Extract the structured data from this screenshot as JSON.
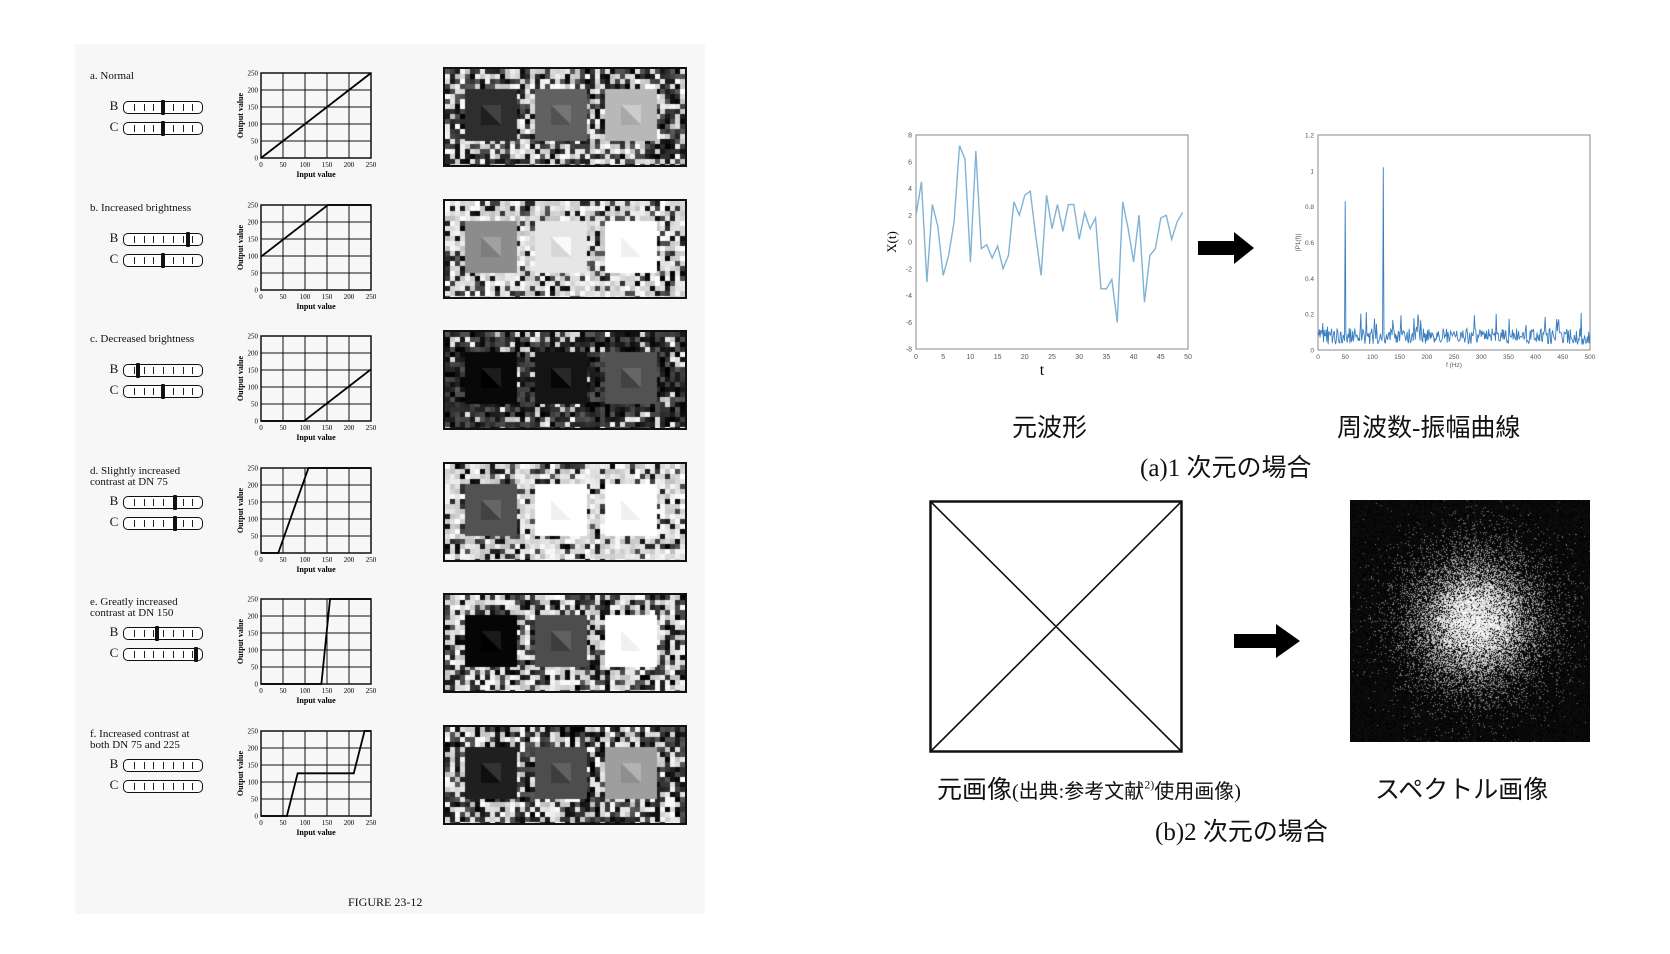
{
  "left_figure": {
    "caption": "FIGURE 23-12",
    "slider_labels": {
      "b": "B",
      "c": "C"
    },
    "axis": {
      "xlabel": "Input value",
      "ylabel": "Output value",
      "ticks": [
        "0",
        "50",
        "100",
        "150",
        "200",
        "250"
      ]
    },
    "rows": [
      {
        "label": "a. Normal",
        "b_pos": 0.5,
        "c_pos": 0.5,
        "curve": [
          [
            0,
            0
          ],
          [
            255,
            255
          ]
        ],
        "grays": [
          0.18,
          0.38,
          0.72
        ],
        "noise_mean": 0.45
      },
      {
        "label": "b. Increased brightness",
        "b_pos": 0.82,
        "c_pos": 0.5,
        "curve": [
          [
            0,
            100
          ],
          [
            155,
            255
          ],
          [
            255,
            255
          ]
        ],
        "grays": [
          0.55,
          0.9,
          1.0
        ],
        "noise_mean": 0.72
      },
      {
        "label": "c. Decreased brightness",
        "b_pos": 0.18,
        "c_pos": 0.5,
        "curve": [
          [
            0,
            0
          ],
          [
            100,
            0
          ],
          [
            255,
            155
          ]
        ],
        "grays": [
          0.03,
          0.08,
          0.32
        ],
        "noise_mean": 0.12
      },
      {
        "label": "d. Slightly increased\n    contrast at DN 75",
        "b_pos": 0.65,
        "c_pos": 0.65,
        "curve": [
          [
            0,
            0
          ],
          [
            40,
            0
          ],
          [
            110,
            255
          ],
          [
            255,
            255
          ]
        ],
        "grays": [
          0.32,
          1.0,
          1.0
        ],
        "noise_mean": 0.75
      },
      {
        "label": "e. Greatly increased\n    contrast at DN 150",
        "b_pos": 0.42,
        "c_pos": 0.92,
        "curve": [
          [
            0,
            0
          ],
          [
            140,
            0
          ],
          [
            160,
            255
          ],
          [
            255,
            255
          ]
        ],
        "grays": [
          0.02,
          0.3,
          1.0
        ],
        "noise_mean": 0.55
      },
      {
        "label": "f. Increased contrast at\n    both DN 75 and 225",
        "b_pos": null,
        "c_pos": null,
        "curve": [
          [
            0,
            0
          ],
          [
            60,
            0
          ],
          [
            85,
            128
          ],
          [
            215,
            128
          ],
          [
            240,
            255
          ],
          [
            255,
            255
          ]
        ],
        "grays": [
          0.12,
          0.3,
          0.62
        ],
        "noise_mean": 0.4
      }
    ]
  },
  "wave_chart": {
    "chart_data": {
      "type": "line",
      "title": "",
      "xlabel": "t",
      "ylabel": "X(t)",
      "xlim": [
        0,
        50
      ],
      "ylim": [
        -8,
        8
      ],
      "xticks": [
        "0",
        "5",
        "10",
        "15",
        "20",
        "25",
        "30",
        "35",
        "40",
        "45",
        "50"
      ],
      "yticks": [
        "8",
        "6",
        "4",
        "2",
        "0",
        "-2",
        "-4",
        "-6",
        "-8"
      ],
      "color": "#7fb3d5",
      "x": [
        0,
        1,
        2,
        3,
        4,
        5,
        6,
        7,
        8,
        9,
        10,
        11,
        12,
        13,
        14,
        15,
        16,
        17,
        18,
        19,
        20,
        21,
        22,
        23,
        24,
        25,
        26,
        27,
        28,
        29,
        30,
        31,
        32,
        33,
        34,
        35,
        36,
        37,
        38,
        39,
        40,
        41,
        42,
        43,
        44,
        45,
        46,
        47,
        48,
        49
      ],
      "values": [
        2.0,
        4.5,
        -3.0,
        2.8,
        1.2,
        -2.5,
        -1.0,
        1.5,
        7.2,
        6.2,
        -1.5,
        6.8,
        -0.5,
        -0.2,
        -1.2,
        -0.3,
        -2.0,
        -1.0,
        3.0,
        2.0,
        3.5,
        3.8,
        0.5,
        -2.5,
        3.5,
        1.0,
        2.8,
        0.8,
        2.8,
        2.8,
        0.2,
        2.2,
        1.0,
        1.8,
        -3.5,
        -3.5,
        -2.8,
        -6.0,
        3.0,
        1.0,
        -1.5,
        2.0,
        -4.5,
        -1.0,
        -0.5,
        1.8,
        2.0,
        0.2,
        1.5,
        2.2
      ]
    },
    "caption": "元波形"
  },
  "spectrum_chart": {
    "chart_data": {
      "type": "line",
      "title": "",
      "xlabel": "f (Hz)",
      "ylabel": "|P1(f)|",
      "xlim": [
        0,
        500
      ],
      "ylim": [
        0,
        1.2
      ],
      "xticks": [
        "0",
        "50",
        "100",
        "150",
        "200",
        "250",
        "300",
        "350",
        "400",
        "450",
        "500"
      ],
      "yticks": [
        "1.2",
        "1",
        "0.8",
        "0.6",
        "0.4",
        "0.2",
        "0"
      ],
      "color": "#3a7ebf",
      "peaks": [
        {
          "f": 50,
          "amp": 0.83
        },
        {
          "f": 120,
          "amp": 1.02
        }
      ],
      "noise_level": 0.12
    },
    "caption": "周波数-振幅曲線"
  },
  "section_a_caption": "(a)1 次元の場合",
  "section_b_caption": "(b)2 次元の場合",
  "image_caption_main": "元画像",
  "image_caption_source": "(出典:参考文献",
  "image_caption_sup": "2)",
  "image_caption_tail": "使用画像)",
  "spectrum_image_caption": "スペクトル画像",
  "colors": {
    "arrow": "#000000",
    "wave": "#7fb3d5",
    "spectrum": "#3a7ebf"
  }
}
